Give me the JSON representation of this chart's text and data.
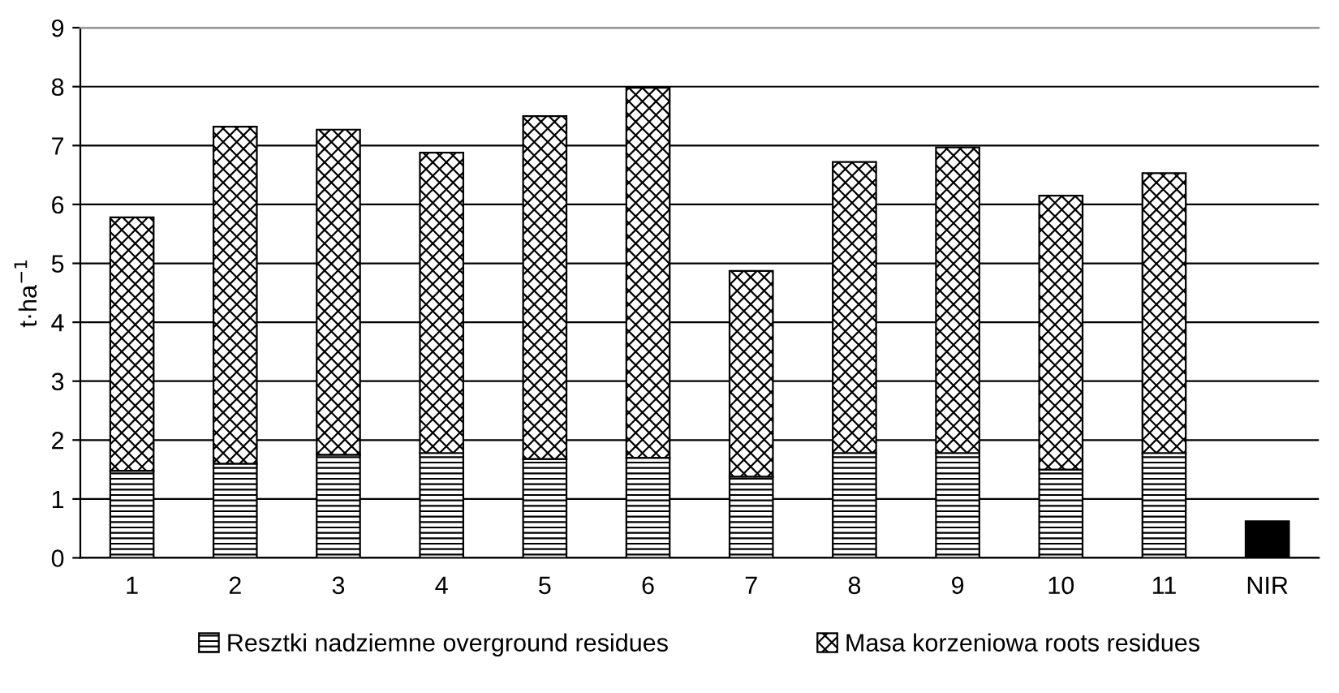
{
  "chart_data": {
    "type": "bar",
    "stacked": true,
    "ylabel": "t·ha$^{−1}$",
    "categories": [
      "1",
      "2",
      "3",
      "4",
      "5",
      "6",
      "7",
      "8",
      "9",
      "10",
      "11",
      "NIR"
    ],
    "series": [
      {
        "name": "Resztki nadziemne overground residues",
        "color": "#000000",
        "values": [
          1.48,
          1.6,
          1.75,
          1.78,
          1.68,
          1.7,
          1.38,
          1.78,
          1.78,
          1.5,
          1.78,
          null
        ]
      },
      {
        "name": "Masa korzeniowa roots residues",
        "color": "#000000",
        "values": [
          4.3,
          5.72,
          5.52,
          5.1,
          5.82,
          6.28,
          3.49,
          4.94,
          5.19,
          4.65,
          4.75,
          null
        ]
      },
      {
        "color": "#000000",
        "values": [
          null,
          null,
          null,
          null,
          null,
          null,
          null,
          null,
          null,
          null,
          null,
          0.62
        ]
      }
    ],
    "ylim": [
      0,
      9
    ],
    "yticks": [
      0,
      1,
      2,
      3,
      4,
      5,
      6,
      7,
      8,
      9
    ],
    "grid": "y",
    "legend": "bottom"
  }
}
